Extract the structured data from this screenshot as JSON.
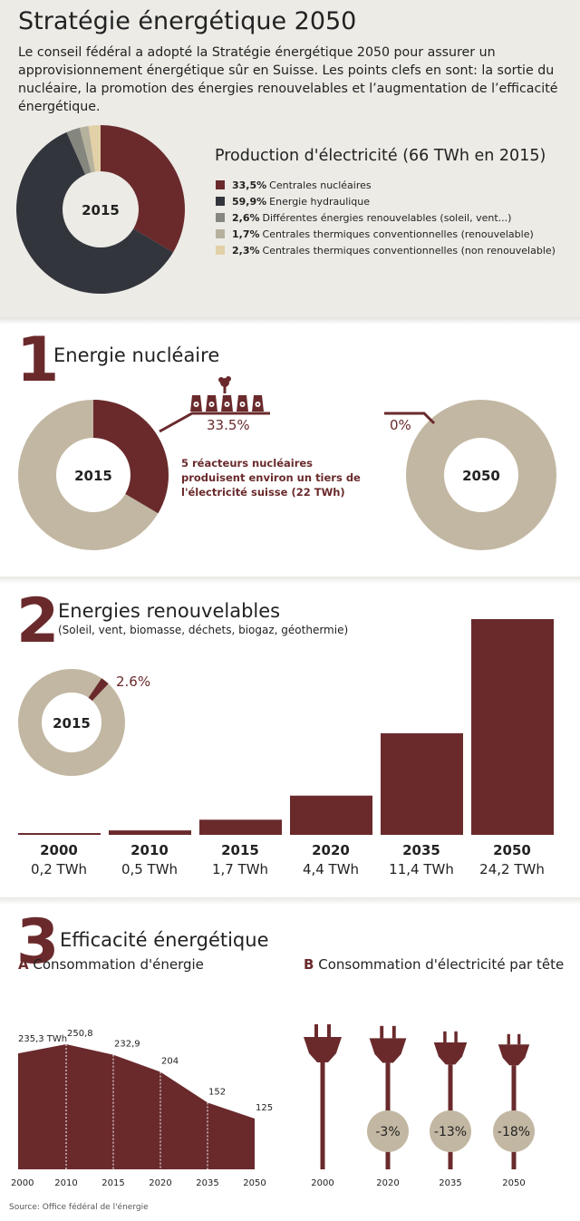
{
  "header": {
    "title": "Stratégie énergétique 2050",
    "intro": "Le conseil fédéral a adopté la Stratégie énergétique 2050 pour assurer un approvisionnement énergétique sûr en Suisse. Les points clefs en sont: la sortie du nucléaire, la promotion des énergies renouvelables et l’augmentation de l’efficacité énergétique."
  },
  "colors": {
    "nuclear": "#6a2a2c",
    "hydro": "#33353d",
    "renewable_other": "#85877f",
    "thermal_renewable": "#b6b19c",
    "thermal_nonrenewable": "#e2d0a7",
    "beige": "#c2b7a2",
    "panel_bg": "#ecebe6"
  },
  "chart_data": [
    {
      "type": "pie",
      "title": "Production d'électricité (66 TWh en 2015)",
      "center_label": "2015",
      "slices": [
        {
          "value": 33.5,
          "pct_label": "33,5%",
          "label": "Centrales nucléaires",
          "color": "#6a2a2c"
        },
        {
          "value": 59.9,
          "pct_label": "59,9%",
          "label": "Energie hydraulique",
          "color": "#33353d"
        },
        {
          "value": 2.6,
          "pct_label": "2,6%",
          "label": "Différentes énergies renouvelables (soleil, vent...)",
          "color": "#85877f"
        },
        {
          "value": 1.7,
          "pct_label": "1,7%",
          "label": "Centrales thermiques conventionnelles (renouvelable)",
          "color": "#b6b19c"
        },
        {
          "value": 2.3,
          "pct_label": "2,3%",
          "label": "Centrales thermiques conventionnelles (non renouvelable)",
          "color": "#e2d0a7"
        }
      ]
    },
    {
      "type": "pie",
      "number": "1",
      "title": "Energie nucléaire",
      "donut_2015": {
        "center_label": "2015",
        "value": 33.5,
        "value_label": "33.5%"
      },
      "donut_2050": {
        "center_label": "2050",
        "value": 0,
        "value_label": "0%"
      },
      "annotation": "5 réacteurs nucléaires produisent environ un tiers de l'électricité suisse (22 TWh)",
      "reactor_count": 5
    },
    {
      "type": "bar",
      "number": "2",
      "title": "Energies renouvelables",
      "subtitle": "(Soleil, vent, biomasse, déchets, biogaz, géothermie)",
      "donut": {
        "center_label": "2015",
        "value": 2.6,
        "value_label": "2.6%"
      },
      "categories": [
        "2000",
        "2010",
        "2015",
        "2020",
        "2035",
        "2050"
      ],
      "values": [
        0.2,
        0.5,
        1.7,
        4.4,
        11.4,
        24.2
      ],
      "value_labels": [
        "0,2 TWh",
        "0,5 TWh",
        "1,7 TWh",
        "4,4 TWh",
        "11,4 TWh",
        "24,2 TWh"
      ],
      "ylim": [
        0,
        24.2
      ]
    },
    {
      "type": "area",
      "number": "3",
      "title": "Efficacité énergétique",
      "panel_letter": "A",
      "panel_title": "Consommation d'énergie",
      "x": [
        "2000",
        "2010",
        "2015",
        "2020",
        "2035",
        "2050"
      ],
      "values": [
        235.3,
        250.8,
        232.9,
        204,
        152,
        125
      ],
      "value_labels": [
        "235,3 TWh",
        "250,8",
        "232,9",
        "204",
        "152",
        "125"
      ]
    },
    {
      "type": "other",
      "panel_letter": "B",
      "panel_title": "Consommation d'électricité par tête",
      "x": [
        "2000",
        "2020",
        "2035",
        "2050"
      ],
      "values": [
        0,
        -3,
        -13,
        -18
      ],
      "value_labels": [
        "",
        "-3%",
        "-13%",
        "-18%"
      ]
    }
  ],
  "footer": {
    "source": "Source: Office fédéral de l'énergie"
  }
}
